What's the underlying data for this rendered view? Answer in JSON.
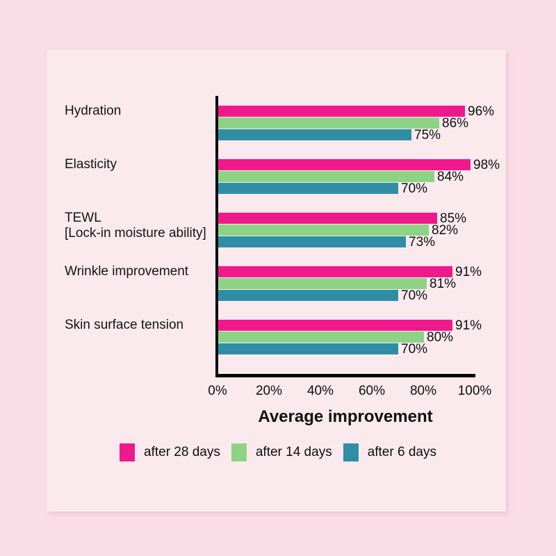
{
  "page": {
    "background_color": "#fbdde7",
    "panel_background_color": "#faeaee"
  },
  "chart_data": {
    "type": "bar",
    "orientation": "horizontal",
    "title": "",
    "xlabel": "Average improvement",
    "ylabel": "",
    "xlim": [
      0,
      100
    ],
    "x_ticks": [
      "0%",
      "20%",
      "40%",
      "60%",
      "80%",
      "100%"
    ],
    "grid": false,
    "legend_position": "bottom",
    "axis_color": "#050505",
    "text_color": "#1a1a1a",
    "value_label_suffix": "%",
    "categories": [
      "Hydration",
      "Elasticity",
      "TEWL\n[Lock-in moisture ability]",
      "Wrinkle improvement",
      "Skin surface tension"
    ],
    "series": [
      {
        "name": "after 28 days",
        "color": "#f0198c",
        "values": [
          96,
          98,
          85,
          91,
          91
        ]
      },
      {
        "name": "after 14 days",
        "color": "#8dd385",
        "values": [
          86,
          84,
          82,
          81,
          80
        ]
      },
      {
        "name": "after 6 days",
        "color": "#2f8ea6",
        "values": [
          75,
          70,
          73,
          70,
          70
        ]
      }
    ]
  }
}
